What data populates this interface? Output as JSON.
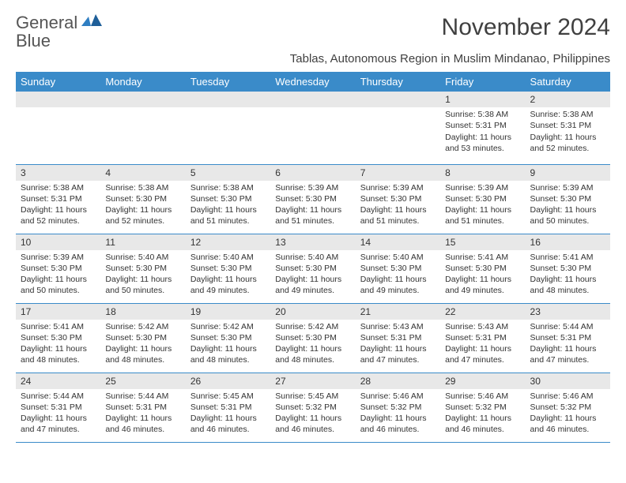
{
  "logo": {
    "text_gray": "General",
    "text_blue": "Blue"
  },
  "header": {
    "title": "November 2024",
    "subtitle": "Tablas, Autonomous Region in Muslim Mindanao, Philippines"
  },
  "colors": {
    "header_bg": "#3a8bc9",
    "header_text": "#ffffff",
    "daynum_bg": "#e8e8e8",
    "border": "#3a8bc9",
    "logo_gray": "#555555",
    "logo_blue": "#2f7ec2"
  },
  "weekdays": [
    "Sunday",
    "Monday",
    "Tuesday",
    "Wednesday",
    "Thursday",
    "Friday",
    "Saturday"
  ],
  "weeks": [
    [
      null,
      null,
      null,
      null,
      null,
      {
        "n": "1",
        "sunrise": "5:38 AM",
        "sunset": "5:31 PM",
        "daylight": "11 hours and 53 minutes."
      },
      {
        "n": "2",
        "sunrise": "5:38 AM",
        "sunset": "5:31 PM",
        "daylight": "11 hours and 52 minutes."
      }
    ],
    [
      {
        "n": "3",
        "sunrise": "5:38 AM",
        "sunset": "5:31 PM",
        "daylight": "11 hours and 52 minutes."
      },
      {
        "n": "4",
        "sunrise": "5:38 AM",
        "sunset": "5:30 PM",
        "daylight": "11 hours and 52 minutes."
      },
      {
        "n": "5",
        "sunrise": "5:38 AM",
        "sunset": "5:30 PM",
        "daylight": "11 hours and 51 minutes."
      },
      {
        "n": "6",
        "sunrise": "5:39 AM",
        "sunset": "5:30 PM",
        "daylight": "11 hours and 51 minutes."
      },
      {
        "n": "7",
        "sunrise": "5:39 AM",
        "sunset": "5:30 PM",
        "daylight": "11 hours and 51 minutes."
      },
      {
        "n": "8",
        "sunrise": "5:39 AM",
        "sunset": "5:30 PM",
        "daylight": "11 hours and 51 minutes."
      },
      {
        "n": "9",
        "sunrise": "5:39 AM",
        "sunset": "5:30 PM",
        "daylight": "11 hours and 50 minutes."
      }
    ],
    [
      {
        "n": "10",
        "sunrise": "5:39 AM",
        "sunset": "5:30 PM",
        "daylight": "11 hours and 50 minutes."
      },
      {
        "n": "11",
        "sunrise": "5:40 AM",
        "sunset": "5:30 PM",
        "daylight": "11 hours and 50 minutes."
      },
      {
        "n": "12",
        "sunrise": "5:40 AM",
        "sunset": "5:30 PM",
        "daylight": "11 hours and 49 minutes."
      },
      {
        "n": "13",
        "sunrise": "5:40 AM",
        "sunset": "5:30 PM",
        "daylight": "11 hours and 49 minutes."
      },
      {
        "n": "14",
        "sunrise": "5:40 AM",
        "sunset": "5:30 PM",
        "daylight": "11 hours and 49 minutes."
      },
      {
        "n": "15",
        "sunrise": "5:41 AM",
        "sunset": "5:30 PM",
        "daylight": "11 hours and 49 minutes."
      },
      {
        "n": "16",
        "sunrise": "5:41 AM",
        "sunset": "5:30 PM",
        "daylight": "11 hours and 48 minutes."
      }
    ],
    [
      {
        "n": "17",
        "sunrise": "5:41 AM",
        "sunset": "5:30 PM",
        "daylight": "11 hours and 48 minutes."
      },
      {
        "n": "18",
        "sunrise": "5:42 AM",
        "sunset": "5:30 PM",
        "daylight": "11 hours and 48 minutes."
      },
      {
        "n": "19",
        "sunrise": "5:42 AM",
        "sunset": "5:30 PM",
        "daylight": "11 hours and 48 minutes."
      },
      {
        "n": "20",
        "sunrise": "5:42 AM",
        "sunset": "5:30 PM",
        "daylight": "11 hours and 48 minutes."
      },
      {
        "n": "21",
        "sunrise": "5:43 AM",
        "sunset": "5:31 PM",
        "daylight": "11 hours and 47 minutes."
      },
      {
        "n": "22",
        "sunrise": "5:43 AM",
        "sunset": "5:31 PM",
        "daylight": "11 hours and 47 minutes."
      },
      {
        "n": "23",
        "sunrise": "5:44 AM",
        "sunset": "5:31 PM",
        "daylight": "11 hours and 47 minutes."
      }
    ],
    [
      {
        "n": "24",
        "sunrise": "5:44 AM",
        "sunset": "5:31 PM",
        "daylight": "11 hours and 47 minutes."
      },
      {
        "n": "25",
        "sunrise": "5:44 AM",
        "sunset": "5:31 PM",
        "daylight": "11 hours and 46 minutes."
      },
      {
        "n": "26",
        "sunrise": "5:45 AM",
        "sunset": "5:31 PM",
        "daylight": "11 hours and 46 minutes."
      },
      {
        "n": "27",
        "sunrise": "5:45 AM",
        "sunset": "5:32 PM",
        "daylight": "11 hours and 46 minutes."
      },
      {
        "n": "28",
        "sunrise": "5:46 AM",
        "sunset": "5:32 PM",
        "daylight": "11 hours and 46 minutes."
      },
      {
        "n": "29",
        "sunrise": "5:46 AM",
        "sunset": "5:32 PM",
        "daylight": "11 hours and 46 minutes."
      },
      {
        "n": "30",
        "sunrise": "5:46 AM",
        "sunset": "5:32 PM",
        "daylight": "11 hours and 46 minutes."
      }
    ]
  ],
  "labels": {
    "sunrise": "Sunrise: ",
    "sunset": "Sunset: ",
    "daylight": "Daylight: "
  }
}
